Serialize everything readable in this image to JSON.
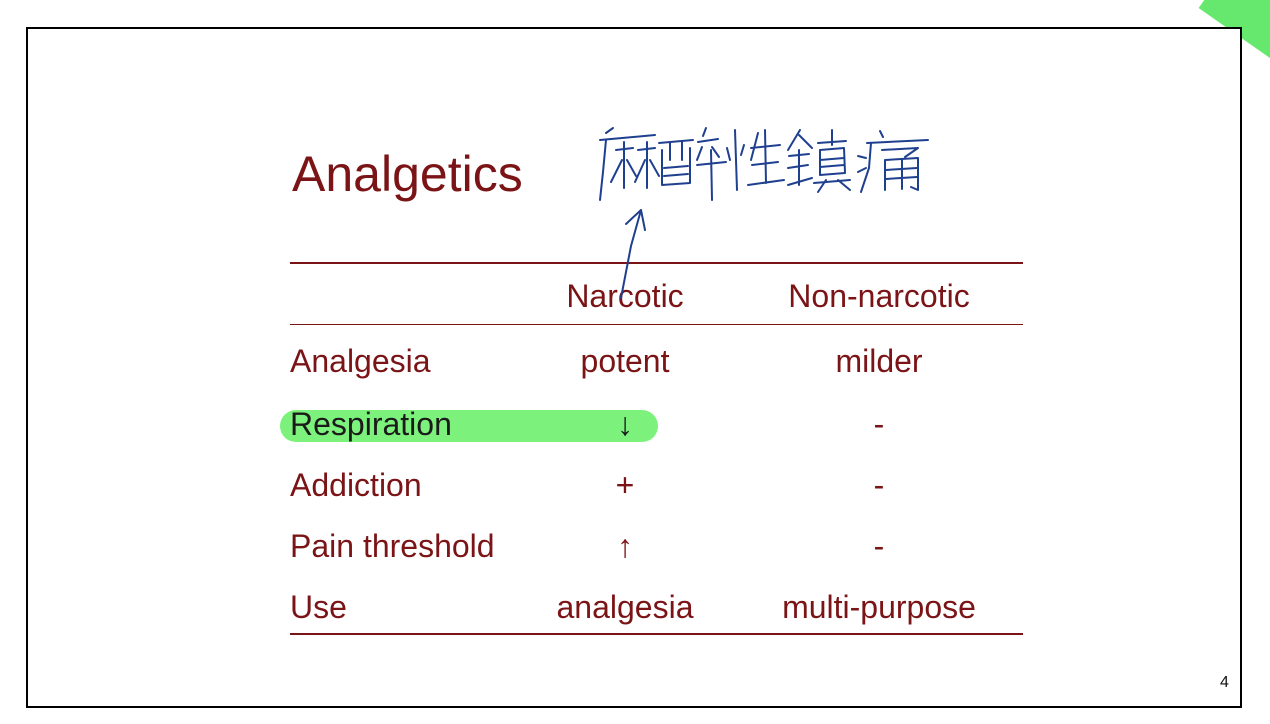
{
  "slide": {
    "title": "Analgetics",
    "page_number": "4",
    "handwritten_note": "麻醉性鎮痛"
  },
  "table": {
    "columns": [
      "",
      "Narcotic",
      "Non-narcotic"
    ],
    "rows": [
      {
        "label": "Analgesia",
        "narcotic": "potent",
        "non_narcotic": "milder",
        "highlighted": false
      },
      {
        "label": "Respiration",
        "narcotic": "↓",
        "non_narcotic": "-",
        "highlighted": true
      },
      {
        "label": "Addiction",
        "narcotic": "+",
        "non_narcotic": "-",
        "highlighted": false
      },
      {
        "label": "Pain threshold",
        "narcotic": "↑",
        "non_narcotic": "-",
        "highlighted": false
      },
      {
        "label": "Use",
        "narcotic": "analgesia",
        "non_narcotic": "multi-purpose",
        "highlighted": false
      }
    ]
  },
  "colors": {
    "text": "#7b1416",
    "rules": "#7b1416",
    "highlight": "#7cf27c",
    "ink": "#1f3f8f",
    "corner_tab": "#66e86e"
  }
}
